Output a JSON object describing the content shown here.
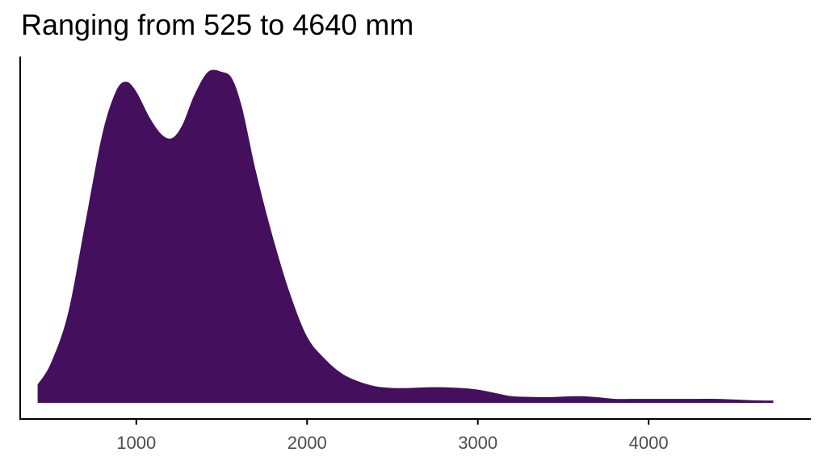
{
  "chart_data": {
    "type": "area",
    "title": "Ranging from 525 to 4640 mm",
    "xlabel": "",
    "ylabel": "",
    "xlim": [
      320,
      4950
    ],
    "ylim": [
      0,
      1.0
    ],
    "grid": false,
    "x_ticks": [
      "1000",
      "2000",
      "3000",
      "4000"
    ],
    "y_ticks": [],
    "series": [
      {
        "color": "#440f5c",
        "x": [
          422,
          500,
          600,
          700,
          800,
          880,
          940,
          1000,
          1080,
          1150,
          1210,
          1270,
          1340,
          1420,
          1500,
          1560,
          1620,
          1700,
          1800,
          1900,
          2000,
          2100,
          2200,
          2300,
          2400,
          2500,
          2600,
          2700,
          2800,
          2900,
          3000,
          3100,
          3200,
          3300,
          3400,
          3500,
          3600,
          3700,
          3800,
          3900,
          4000,
          4200,
          4400,
          4600,
          4730
        ],
        "y": [
          0.055,
          0.12,
          0.27,
          0.54,
          0.81,
          0.94,
          0.97,
          0.94,
          0.86,
          0.81,
          0.8,
          0.84,
          0.93,
          1.0,
          1.0,
          0.98,
          0.89,
          0.7,
          0.5,
          0.33,
          0.2,
          0.135,
          0.09,
          0.065,
          0.05,
          0.045,
          0.045,
          0.047,
          0.047,
          0.045,
          0.04,
          0.03,
          0.02,
          0.018,
          0.017,
          0.019,
          0.02,
          0.017,
          0.012,
          0.012,
          0.012,
          0.012,
          0.012,
          0.008,
          0.007
        ]
      }
    ]
  }
}
